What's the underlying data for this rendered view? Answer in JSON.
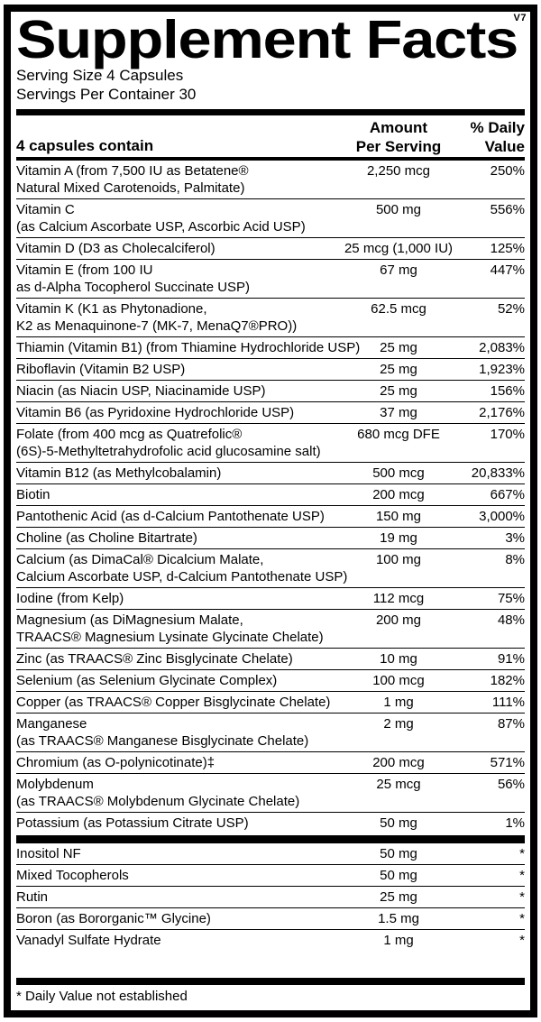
{
  "label": {
    "version": "V7",
    "title": "Supplement Facts",
    "serving_size": "Serving Size 4 Capsules",
    "servings_per_container": "Servings Per Container 30",
    "header": {
      "capsules": "4 capsules contain",
      "amount": "Amount\nPer Serving",
      "daily_value": "% Daily\nValue"
    },
    "nutrients": [
      {
        "name": "Vitamin A (from 7,500 IU as Betatene®\nNatural Mixed Carotenoids, Palmitate)",
        "amount": "2,250 mcg",
        "dv": "250%"
      },
      {
        "name": "Vitamin C\n(as Calcium Ascorbate USP, Ascorbic Acid USP)",
        "amount": "500 mg",
        "dv": "556%"
      },
      {
        "name": "Vitamin D (D3 as Cholecalciferol)",
        "amount": "25 mcg (1,000 IU)",
        "dv": "125%"
      },
      {
        "name": "Vitamin E (from 100 IU\nas d-Alpha Tocopherol Succinate USP)",
        "amount": "67 mg",
        "dv": "447%"
      },
      {
        "name": "Vitamin K (K1 as Phytonadione,\nK2 as Menaquinone-7 (MK-7, MenaQ7®PRO))",
        "amount": "62.5 mcg",
        "dv": "52%"
      },
      {
        "name": "Thiamin (Vitamin B1) (from Thiamine Hydrochloride USP)",
        "amount": "25 mg",
        "dv": "2,083%"
      },
      {
        "name": "Riboflavin (Vitamin B2 USP)",
        "amount": "25 mg",
        "dv": "1,923%"
      },
      {
        "name": "Niacin (as Niacin USP, Niacinamide USP)",
        "amount": "25 mg",
        "dv": "156%"
      },
      {
        "name": "Vitamin B6 (as Pyridoxine Hydrochloride USP)",
        "amount": "37 mg",
        "dv": "2,176%"
      },
      {
        "name": "Folate (from 400 mcg as Quatrefolic®\n(6S)-5-Methyltetrahydrofolic acid glucosamine salt)",
        "amount": "680 mcg DFE",
        "dv": "170%"
      },
      {
        "name": "Vitamin B12 (as Methylcobalamin)",
        "amount": "500 mcg",
        "dv": "20,833%"
      },
      {
        "name": "Biotin",
        "amount": "200 mcg",
        "dv": "667%"
      },
      {
        "name": "Pantothenic Acid (as d-Calcium Pantothenate USP)",
        "amount": "150 mg",
        "dv": "3,000%"
      },
      {
        "name": "Choline (as Choline Bitartrate)",
        "amount": "19 mg",
        "dv": "3%"
      },
      {
        "name": "Calcium (as DimaCal® Dicalcium Malate,\nCalcium Ascorbate USP, d-Calcium Pantothenate USP)",
        "amount": "100 mg",
        "dv": "8%"
      },
      {
        "name": "Iodine (from Kelp)",
        "amount": "112 mcg",
        "dv": "75%"
      },
      {
        "name": "Magnesium (as DiMagnesium Malate,\nTRAACS® Magnesium Lysinate Glycinate Chelate)",
        "amount": "200 mg",
        "dv": "48%"
      },
      {
        "name": "Zinc (as TRAACS® Zinc Bisglycinate Chelate)",
        "amount": "10 mg",
        "dv": "91%"
      },
      {
        "name": "Selenium (as Selenium Glycinate Complex)",
        "amount": "100 mcg",
        "dv": "182%"
      },
      {
        "name": "Copper (as TRAACS® Copper Bisglycinate Chelate)",
        "amount": "1 mg",
        "dv": "111%"
      },
      {
        "name": "Manganese\n(as TRAACS® Manganese Bisglycinate Chelate)",
        "amount": "2 mg",
        "dv": "87%"
      },
      {
        "name": "Chromium (as O-polynicotinate)‡",
        "amount": "200 mcg",
        "dv": "571%"
      },
      {
        "name": "Molybdenum\n(as TRAACS® Molybdenum Glycinate Chelate)",
        "amount": "25 mcg",
        "dv": "56%"
      },
      {
        "name": "Potassium (as Potassium Citrate USP)",
        "amount": "50 mg",
        "dv": "1%"
      }
    ],
    "other_ingredients": [
      {
        "name": "Inositol NF",
        "amount": "50 mg",
        "dv": "*"
      },
      {
        "name": "Mixed Tocopherols",
        "amount": "50 mg",
        "dv": "*"
      },
      {
        "name": "Rutin",
        "amount": "25 mg",
        "dv": "*"
      },
      {
        "name": "Boron (as Bororganic™ Glycine)",
        "amount": "1.5 mg",
        "dv": "*"
      },
      {
        "name": "Vanadyl Sulfate Hydrate",
        "amount": "1 mg",
        "dv": "*"
      }
    ],
    "footnote": "* Daily Value not established"
  }
}
